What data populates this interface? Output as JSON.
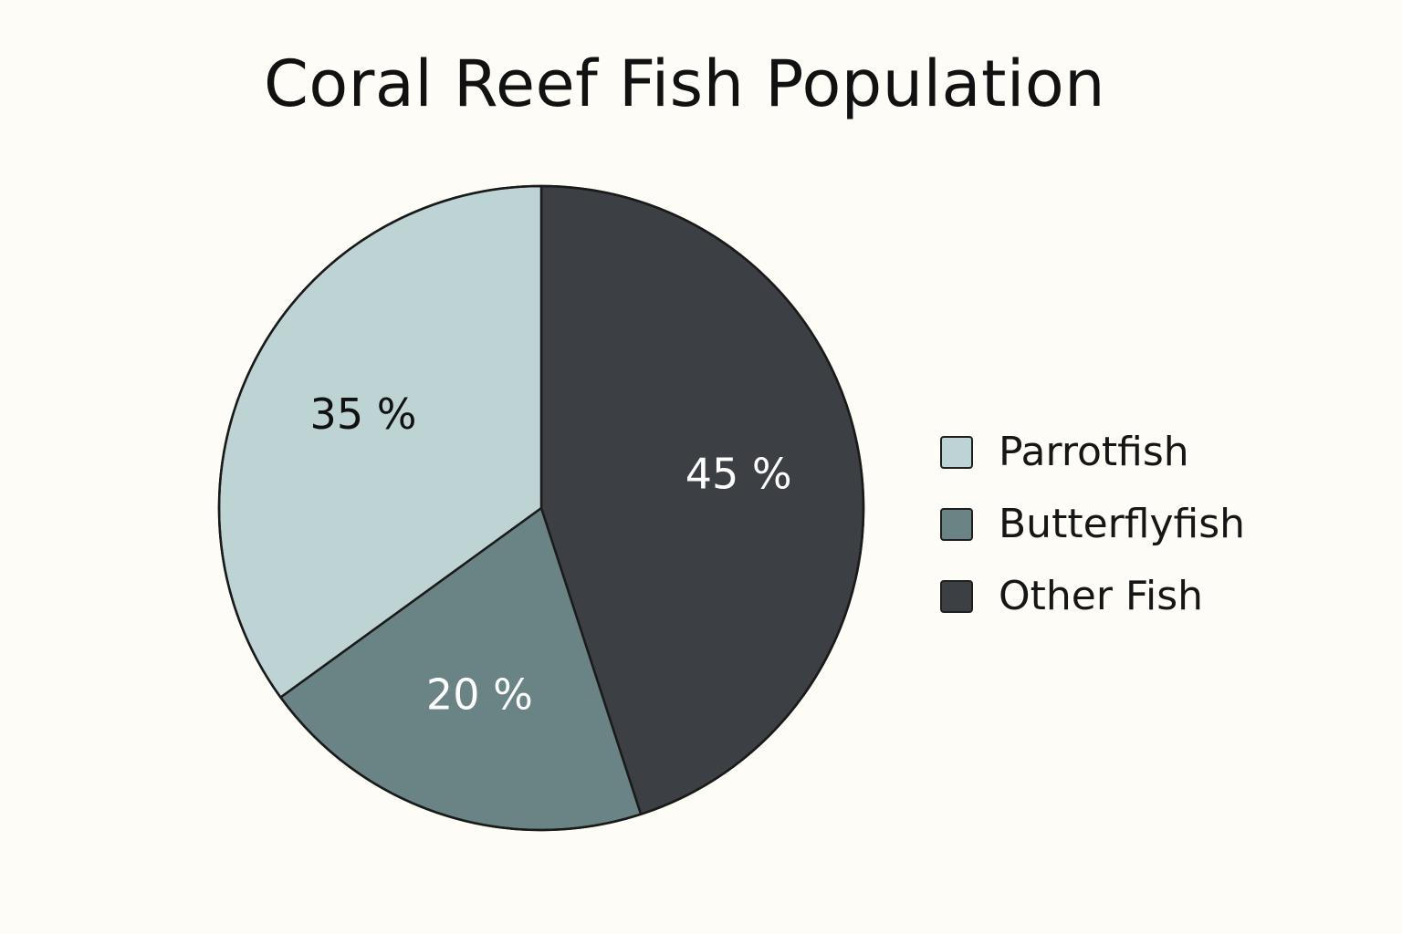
{
  "chart_data": {
    "type": "pie",
    "title": "Coral Reef Fish Population",
    "slices": [
      {
        "label": "Other Fish",
        "value": 45,
        "value_label": "45 %",
        "color": "#3c3f43",
        "text_color": "#ffffff"
      },
      {
        "label": "Butterflyfish",
        "value": 20,
        "value_label": "20 %",
        "color": "#6a8385",
        "text_color": "#ffffff"
      },
      {
        "label": "Parrotfish",
        "value": 35,
        "value_label": "35 %",
        "color": "#bed3d4",
        "text_color": "#111111"
      }
    ],
    "legend": {
      "placement": "right",
      "entries": [
        "Parrotfish",
        "Butterflyfish",
        "Other Fish"
      ]
    },
    "start": "12 o'clock",
    "direction": "clockwise"
  }
}
